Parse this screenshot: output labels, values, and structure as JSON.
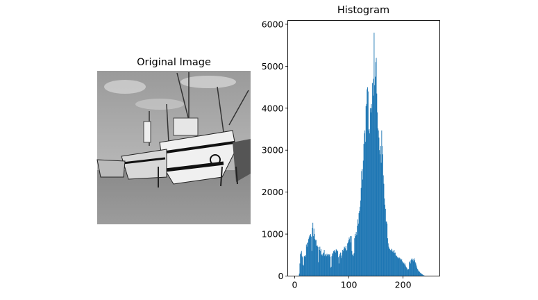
{
  "figure": {
    "image_panel": {
      "title": "Original Image",
      "content": "grayscale photo of fishing boats beached on sand"
    }
  },
  "chart_data": {
    "type": "bar",
    "title": "Histogram",
    "xlabel": "",
    "ylabel": "",
    "bin_start": 0,
    "bin_width": 1,
    "xlim": [
      -12.75,
      267.75
    ],
    "ylim": [
      0,
      6090
    ],
    "xticks": [
      0,
      100,
      200
    ],
    "yticks": [
      0,
      1000,
      2000,
      3000,
      4000,
      5000,
      6000
    ],
    "grid": false,
    "color": "#1f77b4",
    "values": [
      0,
      0,
      0,
      0,
      0,
      0,
      0,
      10,
      60,
      300,
      520,
      560,
      600,
      480,
      450,
      270,
      250,
      470,
      480,
      460,
      500,
      750,
      700,
      790,
      800,
      880,
      920,
      970,
      960,
      1000,
      940,
      600,
      1150,
      1270,
      950,
      1130,
      1000,
      880,
      850,
      860,
      720,
      730,
      700,
      330,
      690,
      620,
      700,
      600,
      640,
      500,
      520,
      490,
      560,
      540,
      620,
      480,
      520,
      500,
      470,
      530,
      510,
      480,
      520,
      500,
      520,
      460,
      200,
      220,
      470,
      550,
      520,
      600,
      580,
      620,
      600,
      560,
      640,
      620,
      590,
      600,
      450,
      300,
      480,
      520,
      560,
      430,
      490,
      560,
      620,
      600,
      640,
      700,
      680,
      660,
      720,
      600,
      620,
      780,
      800,
      850,
      920,
      880,
      950,
      800,
      950,
      600,
      500,
      520,
      480,
      550,
      900,
      1000,
      950,
      1050,
      980,
      1200,
      1350,
      1250,
      1500,
      1550,
      1650,
      1800,
      2100,
      2500,
      2550,
      2300,
      2750,
      3150,
      3400,
      3470,
      3200,
      4050,
      4100,
      4450,
      4500,
      4400,
      3470,
      3500,
      3400,
      4000,
      3900,
      4100,
      4000,
      4600,
      4300,
      4700,
      5800,
      4550,
      4750,
      5100,
      5200,
      4350,
      3900,
      3520,
      3470,
      3300,
      3000,
      2900,
      3100,
      2700,
      3470,
      3100,
      2900,
      2400,
      2200,
      1850,
      1700,
      1600,
      1300,
      1300,
      1250,
      900,
      780,
      700,
      660,
      640,
      620,
      600,
      650,
      630,
      580,
      600,
      560,
      620,
      550,
      560,
      500,
      470,
      480,
      450,
      430,
      420,
      450,
      430,
      400,
      420,
      380,
      400,
      350,
      330,
      300,
      320,
      280,
      300,
      250,
      220,
      200,
      180,
      150,
      160,
      170,
      330,
      350,
      300,
      380,
      400,
      420,
      380,
      400,
      350,
      420,
      380,
      330,
      300,
      250,
      200,
      170,
      150,
      120,
      110,
      100,
      80,
      70,
      60,
      50,
      40,
      30,
      20,
      15,
      10,
      8,
      5,
      3,
      2,
      1,
      0,
      0,
      0,
      0,
      0,
      0,
      0,
      0,
      0,
      0,
      0
    ]
  }
}
